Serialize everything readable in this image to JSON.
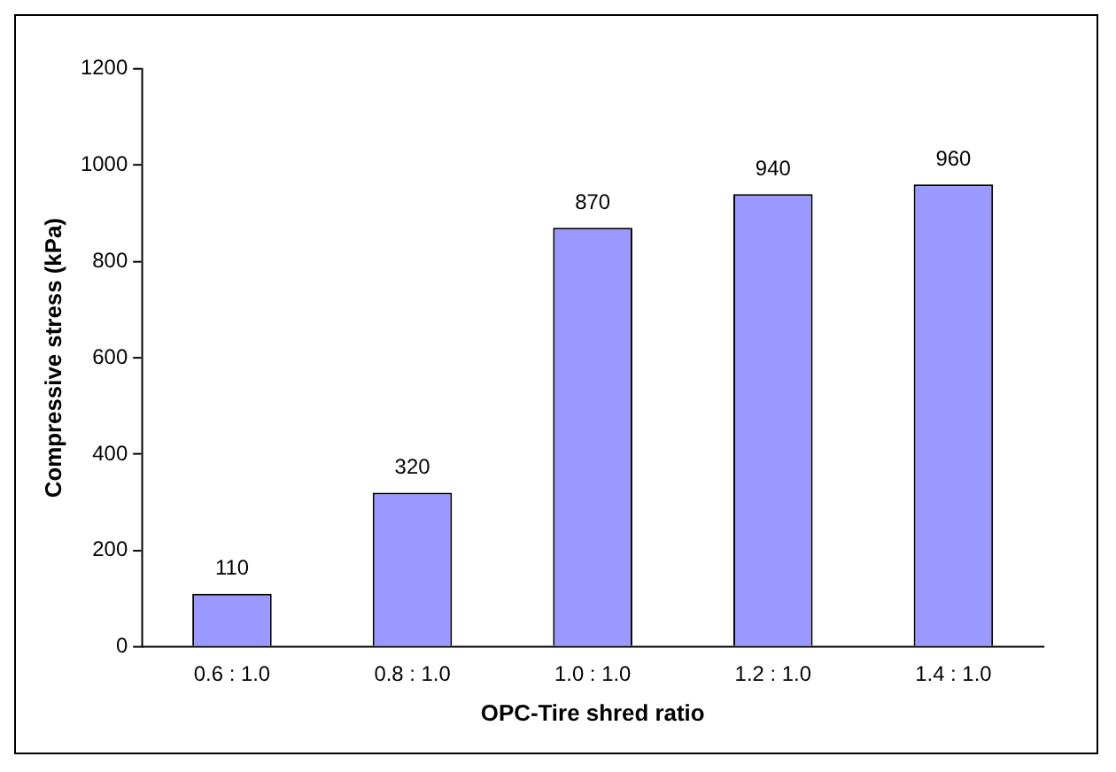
{
  "chart_data": {
    "type": "bar",
    "xlabel": "OPC-Tire shred ratio",
    "ylabel": "Compressive stress (kPa)",
    "categories": [
      "0.6 : 1.0",
      "0.8 : 1.0",
      "1.0 : 1.0",
      "1.2 : 1.0",
      "1.4 : 1.0"
    ],
    "values": [
      110,
      320,
      870,
      940,
      960
    ],
    "color": "#9999ff",
    "ylim": [
      0,
      1200
    ],
    "yticks": [
      0,
      200,
      400,
      600,
      800,
      1000,
      1200
    ],
    "grid": false,
    "legend": false,
    "data_labels": true
  }
}
